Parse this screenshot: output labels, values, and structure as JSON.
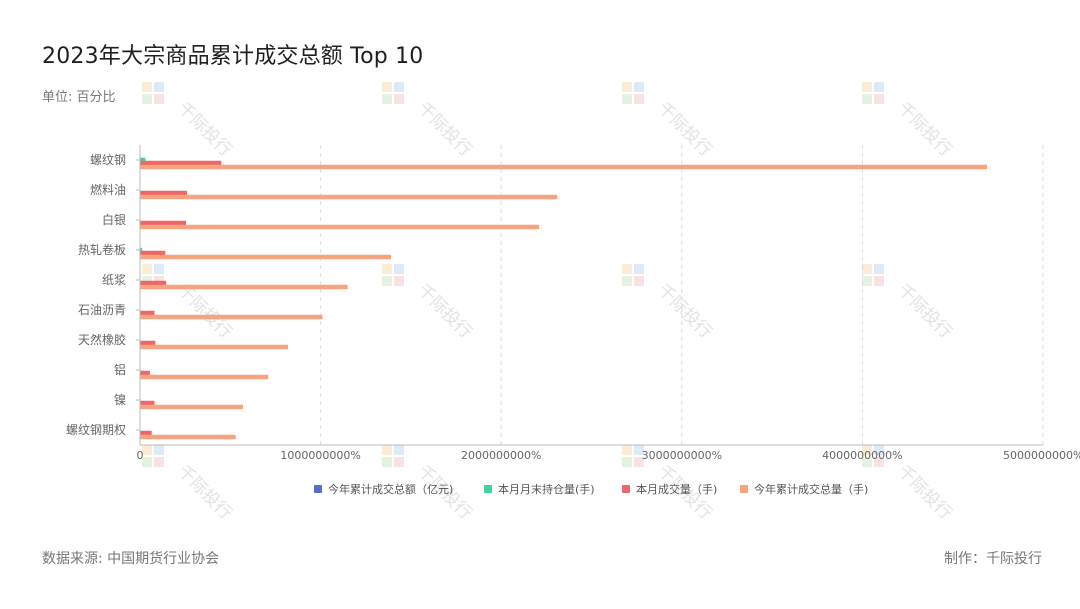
{
  "header": {
    "title": "2023年大宗商品累计成交总额 Top 10",
    "unit": "单位: 百分比"
  },
  "footer": {
    "source": "数据来源: 中国期货行业协会",
    "credit": "制作：千际投行"
  },
  "watermark": {
    "text": "千际投行"
  },
  "colors": {
    "series": [
      "#5470c6",
      "#3fd1a4",
      "#ee6666",
      "#f4a480"
    ],
    "grid": "#dddddd",
    "axis": "#bbbbbb",
    "label": "#666666"
  },
  "chart_data": {
    "type": "bar",
    "orientation": "horizontal",
    "categories": [
      "螺纹钢",
      "燃料油",
      "白银",
      "热轧卷板",
      "纸浆",
      "石油沥青",
      "天然橡胶",
      "铝",
      "镍",
      "螺纹钢期权"
    ],
    "xlim": [
      0,
      5000000000
    ],
    "x_ticks": [
      "0",
      "1000000000%",
      "2000000000%",
      "3000000000%",
      "4000000000%",
      "5000000000%"
    ],
    "legend_position": "bottom",
    "grid": "vertical dashed",
    "series": [
      {
        "name": "今年累计成交总额（亿元)",
        "values": [
          0,
          0,
          0,
          0,
          0,
          0,
          0,
          0,
          0,
          0
        ]
      },
      {
        "name": "本月月末持仓量(手)",
        "values": [
          30000000,
          0,
          0,
          12000000,
          0,
          0,
          0,
          0,
          0,
          0
        ]
      },
      {
        "name": "本月成交量（手)",
        "values": [
          450000000,
          260000000,
          255000000,
          140000000,
          145000000,
          80000000,
          85000000,
          55000000,
          80000000,
          65000000
        ]
      },
      {
        "name": "今年累计成交总量（手)",
        "values": [
          4690000000,
          2310000000,
          2210000000,
          1390000000,
          1150000000,
          1010000000,
          820000000,
          710000000,
          570000000,
          530000000
        ]
      }
    ]
  }
}
